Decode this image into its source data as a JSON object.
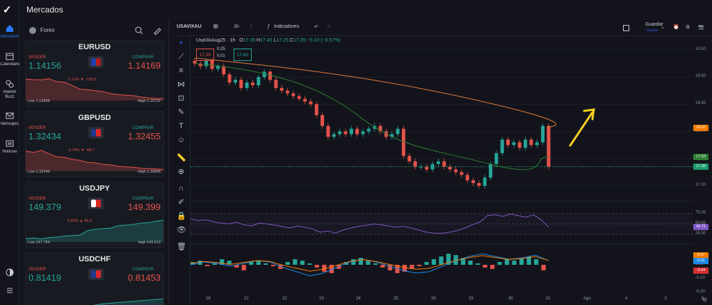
{
  "app": {
    "title": "Mercados"
  },
  "nav": [
    {
      "label": "Mercados",
      "icon": "home-icon"
    },
    {
      "label": "Calendario",
      "icon": "calendar-icon"
    },
    {
      "label": "Market Buzz",
      "icon": "buzz-icon"
    },
    {
      "label": "Mensajes",
      "icon": "mail-icon"
    },
    {
      "label": "Noticias",
      "icon": "news-icon"
    }
  ],
  "watchlist": {
    "category": "Forex",
    "items": [
      {
        "symbol": "EURUSD",
        "sell_label": "VENDER",
        "buy_label": "COMPRAR",
        "sell": "1.14156",
        "buy": "1.14169",
        "change": "-1.11% ▼ -128.3",
        "low": "Low 1.13988",
        "high": "High 1.15722",
        "flag_colors": [
          "#1e40af",
          "#b91c1c"
        ],
        "spark": [
          0.2,
          0.22,
          0.23,
          0.18,
          0.3,
          0.32,
          0.45,
          0.6,
          0.62,
          0.66,
          0.7,
          0.78,
          0.82,
          0.84,
          0.86,
          0.92,
          0.95,
          0.98,
          0.97
        ],
        "trend": "down"
      },
      {
        "symbol": "GBPUSD",
        "sell_label": "VENDER",
        "buy_label": "COMPRAR",
        "sell": "1.32434",
        "buy": "1.32455",
        "change": "-0.74% ▼ -98.7",
        "low": "Low 1.32248",
        "high": "High 1.33846",
        "flag_colors": [
          "#1e3a8a",
          "#dc2626"
        ],
        "spark": [
          0.25,
          0.3,
          0.22,
          0.35,
          0.48,
          0.5,
          0.58,
          0.62,
          0.7,
          0.72,
          0.78,
          0.8,
          0.86,
          0.88,
          0.9,
          0.94,
          0.95,
          0.97,
          0.98
        ],
        "trend": "down"
      },
      {
        "symbol": "USDJPY",
        "sell_label": "VENDER",
        "buy_label": "COMPRAR",
        "sell": "149.379",
        "buy": "149.399",
        "change": "0.65% ▲ 96.9",
        "low": "Low 147.794",
        "high": "High 149.519",
        "flag_colors": [
          "#ffffff",
          "#dc2626"
        ],
        "spark": [
          0.92,
          0.9,
          0.93,
          0.88,
          0.86,
          0.82,
          0.8,
          0.78,
          0.6,
          0.55,
          0.52,
          0.5,
          0.4,
          0.38,
          0.35,
          0.3,
          0.28,
          0.22,
          0.18
        ],
        "trend": "up"
      },
      {
        "symbol": "USDCHF",
        "sell_label": "VENDER",
        "buy_label": "COMPRAR",
        "sell": "0.81419",
        "buy": "0.81453",
        "change": "",
        "low": "",
        "high": "",
        "flag_colors": [
          "#1e3a8a",
          "#dc2626"
        ],
        "spark": [
          0.95,
          0.93,
          0.9,
          0.85,
          0.8,
          0.7,
          0.65,
          0.6,
          0.55,
          0.5
        ],
        "trend": "up"
      }
    ]
  },
  "chart": {
    "symbol": "USAVIXAU",
    "interval": "1h",
    "indicators_label": "Indicadores",
    "save_label": "Guardar",
    "save_sub": "Guardar",
    "title": "UsaVixAug25 · 1h",
    "ohlc": {
      "o": "17.35",
      "h": "17.45",
      "l": "17.25",
      "c": "17.35",
      "chg": "−0.10 (−0.57%)"
    },
    "sell_box": "17.35",
    "spread_a": "0.25",
    "spread_b": "0.01",
    "buy_box": "17.60",
    "y_ticks": [
      "19.50",
      "19.00",
      "18.50",
      "18.00",
      "17.50",
      "17.00"
    ],
    "price_tags": [
      {
        "text": "18.07",
        "color": "#f57c00"
      },
      {
        "text": "17.53",
        "color": "#2e7d32"
      },
      {
        "text": "17.35",
        "color": "#1a9b6c"
      }
    ],
    "rsi_ticks": [
      "75.00",
      "50.00",
      "25.00"
    ],
    "rsi_tag": {
      "text": "42.71",
      "color": "#7e57c2"
    },
    "macd_ticks": [
      "0.00",
      "-0.10",
      "-0.20"
    ],
    "macd_tags": [
      {
        "text": "0.07",
        "color": "#f57c00"
      },
      {
        "text": "0.03",
        "color": "#1e88e5"
      },
      {
        "text": "-0.04",
        "color": "#d32f2f"
      }
    ],
    "x_ticks": [
      "18",
      "21",
      "22",
      "23",
      "24",
      "25",
      "28",
      "29",
      "30",
      "31",
      "Ago",
      "4",
      "5",
      "6"
    ]
  },
  "colors": {
    "up": "#26a69a",
    "down": "#e5534b",
    "accent": "#2962ff",
    "arrow": "#f5d020"
  }
}
